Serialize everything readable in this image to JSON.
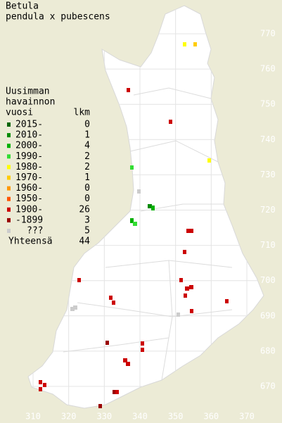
{
  "title": [
    "Betula",
    "pendula x pubescens"
  ],
  "legend": {
    "heading": [
      "Uusimman",
      "havainnon",
      "vuosi"
    ],
    "count_heading": "lkm",
    "rows": [
      {
        "label": "2015-",
        "count": 0,
        "color": "#006400"
      },
      {
        "label": "2010-",
        "count": 1,
        "color": "#008a00"
      },
      {
        "label": "2000-",
        "count": 4,
        "color": "#00b000"
      },
      {
        "label": "1990-",
        "count": 2,
        "color": "#33dd33"
      },
      {
        "label": "1980-",
        "count": 2,
        "color": "#ffff00"
      },
      {
        "label": "1970-",
        "count": 1,
        "color": "#ffcc00"
      },
      {
        "label": "1960-",
        "count": 0,
        "color": "#ff9900"
      },
      {
        "label": "1950-",
        "count": 0,
        "color": "#ff5500"
      },
      {
        "label": "1900-",
        "count": 26,
        "color": "#cc0000"
      },
      {
        "label": "-1899",
        "count": 3,
        "color": "#990000"
      },
      {
        "label": "???",
        "count": 5,
        "color": "#cccccc"
      }
    ],
    "total_label": "Yhteensä",
    "total": 44
  },
  "grid": {
    "y_labels": [
      770,
      760,
      750,
      740,
      730,
      720,
      710,
      700,
      690,
      680,
      670
    ],
    "x_labels": [
      310,
      320,
      330,
      340,
      350,
      360,
      370
    ]
  }
}
